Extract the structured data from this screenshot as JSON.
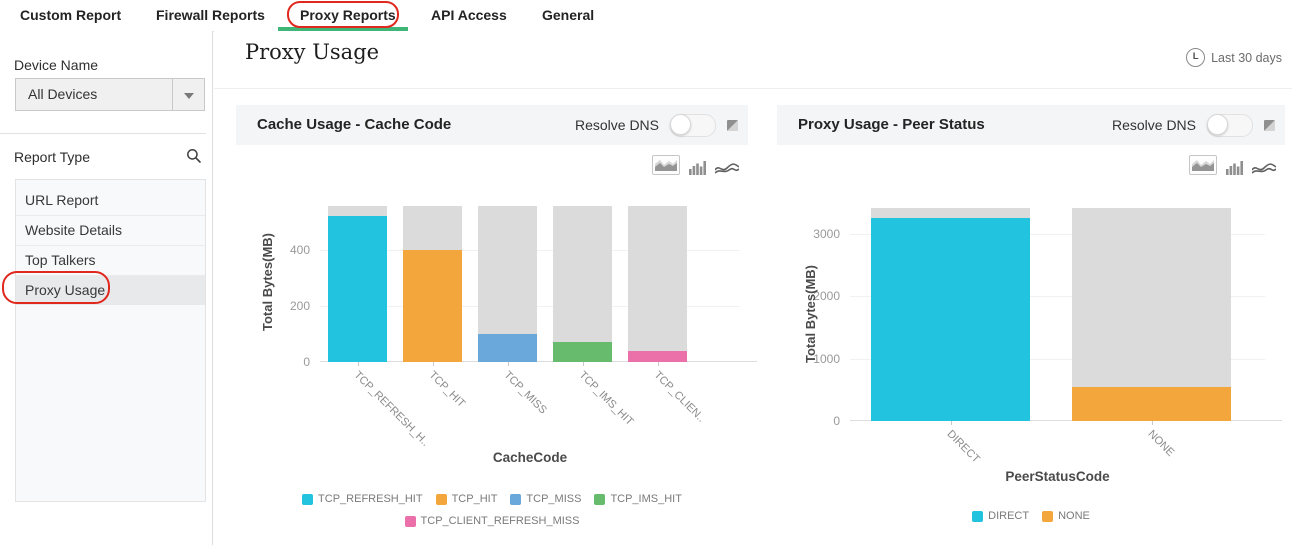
{
  "tabs": {
    "items": [
      {
        "label": "Custom Report",
        "active": false,
        "annotated": false
      },
      {
        "label": "Firewall Reports",
        "active": false,
        "annotated": false
      },
      {
        "label": "Proxy Reports",
        "active": true,
        "annotated": true
      },
      {
        "label": "API Access",
        "active": false,
        "annotated": false
      },
      {
        "label": "General",
        "active": false,
        "annotated": false
      }
    ]
  },
  "sidebar": {
    "device_name_label": "Device Name",
    "device_select_value": "All Devices",
    "report_type_label": "Report Type",
    "reports": [
      {
        "label": "URL Report",
        "selected": false,
        "annotated": false
      },
      {
        "label": "Website Details",
        "selected": false,
        "annotated": false
      },
      {
        "label": "Top Talkers",
        "selected": false,
        "annotated": false
      },
      {
        "label": "Proxy Usage",
        "selected": true,
        "annotated": true
      }
    ]
  },
  "header": {
    "title": "Proxy Usage",
    "time_filter_label": "Last 30 days"
  },
  "icons": {
    "time_filter_glyph": "L",
    "chart_type_options": [
      "area-chart",
      "bar-chart",
      "line-chart"
    ],
    "selected_chart_type": "area-chart"
  },
  "colors": {
    "accent_green": "#3db677",
    "annotation_red": "#e0281e",
    "bar_track": "#dbdbdb"
  },
  "chart_data": [
    {
      "type": "bar",
      "title": "Cache Usage - Cache Code",
      "toggle": {
        "label": "Resolve DNS",
        "state": "off"
      },
      "xlabel": "CacheCode",
      "ylabel": "Total Bytes(MB)",
      "categories": [
        "TCP_REFRESH_H..",
        "TCP_HIT",
        "TCP_MISS",
        "TCP_IMS_HIT",
        "TCP_CLIEN.."
      ],
      "values": [
        520,
        400,
        100,
        70,
        40
      ],
      "track_value": 555,
      "bar_colors": [
        "#22c3de",
        "#f3a63c",
        "#6aa7db",
        "#66bb6c",
        "#eb6fa8"
      ],
      "yticks": [
        0,
        200,
        400
      ],
      "ylim": [
        0,
        570
      ],
      "grid": "horizontal",
      "legend_position": "bottom",
      "legend": [
        {
          "label": "TCP_REFRESH_HIT",
          "color": "#22c3de"
        },
        {
          "label": "TCP_HIT",
          "color": "#f3a63c"
        },
        {
          "label": "TCP_MISS",
          "color": "#6aa7db"
        },
        {
          "label": "TCP_IMS_HIT",
          "color": "#66bb6c"
        },
        {
          "label": "TCP_CLIENT_REFRESH_MISS",
          "color": "#eb6fa8"
        }
      ]
    },
    {
      "type": "bar",
      "title": "Proxy Usage - Peer Status",
      "toggle": {
        "label": "Resolve DNS",
        "state": "off"
      },
      "xlabel": "PeerStatusCode",
      "ylabel": "Total Bytes(MB)",
      "categories": [
        "DIRECT",
        "NONE"
      ],
      "values": [
        3250,
        540
      ],
      "track_value": 3420,
      "bar_colors": [
        "#22c3de",
        "#f3a63c"
      ],
      "yticks": [
        0,
        1000,
        2000,
        3000
      ],
      "ylim": [
        0,
        3450
      ],
      "grid": "horizontal",
      "legend_position": "bottom",
      "legend": [
        {
          "label": "DIRECT",
          "color": "#22c3de"
        },
        {
          "label": "NONE",
          "color": "#f3a63c"
        }
      ]
    }
  ]
}
